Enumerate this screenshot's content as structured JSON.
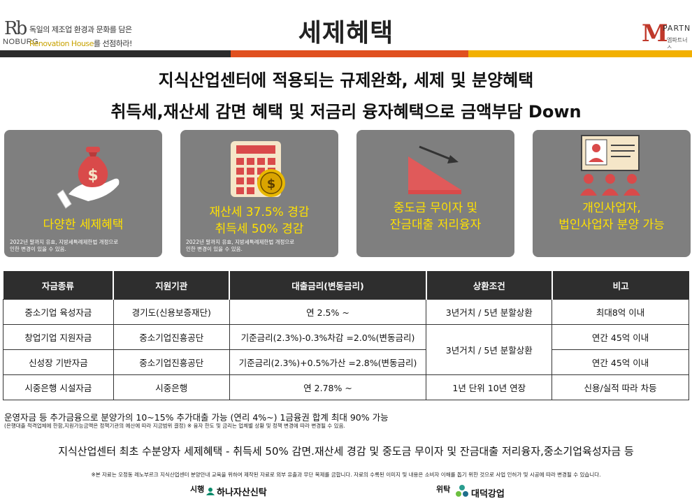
{
  "header": {
    "logo_left_mark": "Rb",
    "logo_left_name": "NOBURG",
    "tagline_1": "독일의 제조업 환경과 문화를 담은",
    "tagline_2_brand": "Renovation House",
    "tagline_2_rest": "를 선점하라!",
    "title": "세제혜택",
    "logo_right_mark": "M",
    "logo_right_name": "PARTN",
    "logo_right_sub": "엠파트너스"
  },
  "colors": {
    "bar_dark": "#2b2b2b",
    "bar_orange": "#e0501f",
    "bar_yellow": "#f2b000",
    "card_bg": "#7f7f7f",
    "card_title": "#ffe100",
    "icon_red": "#d94a4a",
    "icon_cream": "#f5e6c8"
  },
  "headline": {
    "line1": "지식산업센터에 적용되는 규제완화, 세제 및 분양혜택",
    "line2": "취득세,재산세 감면 혜택 및 저금리 융자혜택으로 금액부담 Down"
  },
  "cards": [
    {
      "icon": "money-bag-hand-icon",
      "title": "다양한 세제혜택",
      "note_1": "2022년 말까지 유효, 지방세특례제한법 개정으로",
      "note_2": "인한 변경이 있을 수 있음."
    },
    {
      "icon": "calculator-coin-icon",
      "title_1": "재산세 37.5% 경감",
      "title_2": "취득세 50% 경감",
      "note_1": "2022년 말까지 유효, 지방세특례제한법 개정으로",
      "note_2": "인한 변경이 있을 수 있음."
    },
    {
      "icon": "declining-chart-icon",
      "title_1": "중도금 무이자 및",
      "title_2": "잔금대출 저리융자"
    },
    {
      "icon": "presentation-audience-icon",
      "title_1": "개인사업자,",
      "title_2": "법인사업자 분양 가능"
    }
  ],
  "table": {
    "headers": [
      "자금종류",
      "지원기관",
      "대출금리(변동금리)",
      "상환조건",
      "비고"
    ],
    "rows": [
      [
        "중소기업 육성자금",
        "경기도(신용보증재단)",
        "연 2.5% ~",
        "3년거치 / 5년 분할상환",
        "최대8억 이내"
      ],
      [
        "창업기업 지원자금",
        "중소기업진흥공단",
        "기준금리(2.3%)-0.3%차감 =2.0%(변동금리)",
        "3년거치 / 5년 분할상환",
        "연간 45억 이내"
      ],
      [
        "신성장 기반자금",
        "중소기업진흥공단",
        "기준금리(2.3%)+0.5%가산 =2.8%(변동금리)",
        "",
        "연간 45억 이내"
      ],
      [
        "시중은행 시설자금",
        "시중은행",
        "연 2.78% ~",
        "1년 단위 10년 연장",
        "신용/실적 따라 차등"
      ]
    ]
  },
  "footnote_1": "운영자금 등 추가금융으로 분양가의 10~15% 추가대출 가능 (연리 4%~) 1금융권 합계 최대 90% 가능",
  "footnote_2": "(은행대출 적격업체에 한함,지원가능금액은 정책기관의 예산에 따라 지금범위 결정) ※ 융자 한도 및 금리는 업체별 상황 및 정책 변경에 따라 변경될 수 있음.",
  "summary": "지식산업센터 최초 수분양자 세제혜택 - 취득세 50% 감면.재산세 경감 및 중도금 무이자 및 잔금대출 저리융자,중소기업육성자금 등",
  "disclaimer": "※본 자료는 오정동 레노부르크 지식산업센터 분양안내 교육을 위하여 제작된 자료로 외부 유출과 무단 복제를 금합니다. 자료의 수록된 이미지 및 내용은 소비자 이해를 돕기 위한 것으로 사업 인허가 및 시공에 따라 변경될 수 있습니다.",
  "footer": {
    "developer_label": "시행",
    "developer_name": "하나자산신탁",
    "consign_label": "위탁",
    "consign_name": "대덕강업"
  }
}
